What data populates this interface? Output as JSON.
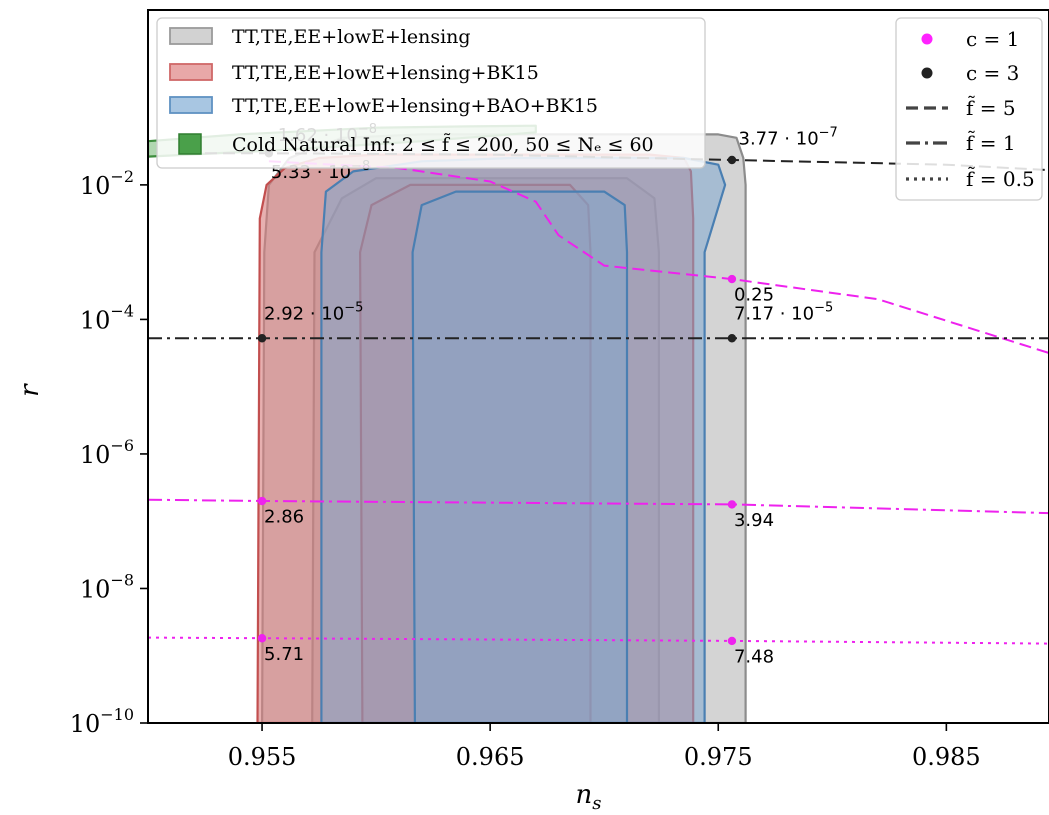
{
  "chart_data": {
    "type": "line",
    "xlabel": "n_s",
    "ylabel": "r",
    "x_axis_label": {
      "base": "n",
      "sub": "s"
    },
    "y_axis_label": "r",
    "xlim": [
      0.95,
      0.9895
    ],
    "ylim_log10": [
      -10,
      0.6
    ],
    "y_scale": "log",
    "x_ticks": [
      {
        "value": 0.955,
        "label": "0.955"
      },
      {
        "value": 0.965,
        "label": "0.965"
      },
      {
        "value": 0.975,
        "label": "0.975"
      },
      {
        "value": 0.985,
        "label": "0.985"
      }
    ],
    "y_ticks": [
      {
        "log": -2,
        "base": "10",
        "exp": "−2"
      },
      {
        "log": -4,
        "base": "10",
        "exp": "−4"
      },
      {
        "log": -6,
        "base": "10",
        "exp": "−6"
      },
      {
        "log": -8,
        "base": "10",
        "exp": "−8"
      },
      {
        "log": -10,
        "base": "10",
        "exp": "−10"
      }
    ],
    "regions": [
      {
        "name": "TT,TE,EE+lowE+lensing",
        "color": "#b0b0b0",
        "edge": "#8c8c8c",
        "opacity": 0.55,
        "outer_left": [
          [
            -10,
            0.955
          ],
          [
            -3,
            0.9551
          ],
          [
            -2,
            0.9553
          ],
          [
            -1.6,
            0.9562
          ],
          [
            -1.3,
            0.9585
          ],
          [
            -1.25,
            0.962
          ],
          [
            -1.25,
            0.975
          ],
          [
            -1.3,
            0.9758
          ],
          [
            -1.6,
            0.9761
          ],
          [
            -2,
            0.9762
          ],
          [
            -10,
            0.9762
          ]
        ],
        "inner_left": [
          [
            -10,
            0.9572
          ],
          [
            -3,
            0.9573
          ],
          [
            -2.2,
            0.9585
          ],
          [
            -1.9,
            0.96
          ],
          [
            -1.9,
            0.971
          ],
          [
            -2.2,
            0.9722
          ],
          [
            -3,
            0.9724
          ],
          [
            -10,
            0.9724
          ]
        ]
      },
      {
        "name": "TT,TE,EE+lowE+lensing+BK15",
        "color": "#d98080",
        "edge": "#c24f4f",
        "opacity": 0.62,
        "outer": [
          [
            -10,
            0.9548
          ],
          [
            -2.5,
            0.9549
          ],
          [
            -2,
            0.9552
          ],
          [
            -1.75,
            0.956
          ],
          [
            -1.6,
            0.9575
          ],
          [
            -1.55,
            0.96
          ],
          [
            -1.55,
            0.972
          ],
          [
            -1.6,
            0.9735
          ],
          [
            -1.8,
            0.9738
          ],
          [
            -2.5,
            0.9739
          ],
          [
            -10,
            0.9739
          ]
        ],
        "inner": [
          [
            -10,
            0.9594
          ],
          [
            -3,
            0.9593
          ],
          [
            -2.3,
            0.9598
          ],
          [
            -2,
            0.9615
          ],
          [
            -2,
            0.9685
          ],
          [
            -2.3,
            0.9693
          ],
          [
            -3,
            0.9694
          ],
          [
            -10,
            0.9694
          ]
        ]
      },
      {
        "name": "TT,TE,EE+lowE+lensing+BAO+BK15",
        "color": "#7fa7cf",
        "edge": "#4a7fb2",
        "opacity": 0.55,
        "outer": [
          [
            -10,
            0.9576
          ],
          [
            -3,
            0.9576
          ],
          [
            -2.1,
            0.9578
          ],
          [
            -1.8,
            0.959
          ],
          [
            -1.65,
            0.962
          ],
          [
            -1.6,
            0.966
          ],
          [
            -1.6,
            0.9735
          ],
          [
            -1.7,
            0.975
          ],
          [
            -2,
            0.9753
          ],
          [
            -3,
            0.9744
          ],
          [
            -10,
            0.9744
          ]
        ],
        "inner": [
          [
            -10,
            0.9617
          ],
          [
            -3,
            0.9616
          ],
          [
            -2.3,
            0.962
          ],
          [
            -2.1,
            0.9635
          ],
          [
            -2.1,
            0.97
          ],
          [
            -2.3,
            0.9709
          ],
          [
            -3,
            0.971
          ],
          [
            -10,
            0.971
          ]
        ]
      },
      {
        "name": "Cold Natural Inf: 2 ≤ f̃ ≤ 200, 50 ≤ N_e ≤ 60",
        "color": "#6fb76f",
        "edge": "#3c8d3c",
        "opacity": 0.55,
        "outline": [
          [
            0.95,
            -1.35
          ],
          [
            0.954,
            -1.25
          ],
          [
            0.96,
            -1.15
          ],
          [
            0.964,
            -1.13
          ],
          [
            0.967,
            -1.12
          ],
          [
            0.967,
            -1.22
          ],
          [
            0.962,
            -1.35
          ],
          [
            0.956,
            -1.48
          ],
          [
            0.95,
            -1.58
          ]
        ]
      }
    ],
    "series": [
      {
        "name": "c = 3, f̃ = 5",
        "color": "#222222",
        "style": "dashed",
        "x": [
          0.9525,
          0.9553,
          0.965,
          0.9756,
          0.985,
          0.9895
        ],
        "log_y": [
          -1.53,
          -1.53,
          -1.55,
          -1.63,
          -1.7,
          -1.78
        ]
      },
      {
        "name": "c = 1, f̃ = 5",
        "color": "#ee22ee",
        "style": "dashed",
        "x": [
          0.9553,
          0.961,
          0.965,
          0.967,
          0.968,
          0.97,
          0.9756,
          0.982,
          0.9895
        ],
        "log_y": [
          -1.65,
          -1.75,
          -1.95,
          -2.25,
          -2.75,
          -3.2,
          -3.4,
          -3.7,
          -4.5
        ]
      },
      {
        "name": "c = 3, f̃ = 1",
        "color": "#222222",
        "style": "dashdot",
        "x": [
          0.95,
          0.9895
        ],
        "log_y": [
          -4.28,
          -4.28
        ]
      },
      {
        "name": "c = 1, f̃ = 1",
        "color": "#ee22ee",
        "style": "dashdot",
        "x": [
          0.95,
          0.955,
          0.9756,
          0.9895
        ],
        "log_y": [
          -6.68,
          -6.7,
          -6.75,
          -6.88
        ]
      },
      {
        "name": "c = 1, f̃ = 0.5",
        "color": "#ee22ee",
        "style": "dotted",
        "x": [
          0.95,
          0.955,
          0.9756,
          0.9895
        ],
        "log_y": [
          -8.73,
          -8.74,
          -8.78,
          -8.82
        ]
      }
    ],
    "points": [
      {
        "x": 0.9553,
        "log_y": -1.53,
        "color": "#222222"
      },
      {
        "x": 0.9756,
        "log_y": -1.63,
        "color": "#222222"
      },
      {
        "x": 0.955,
        "log_y": -4.28,
        "color": "#222222"
      },
      {
        "x": 0.9756,
        "log_y": -4.28,
        "color": "#222222"
      },
      {
        "x": 0.9756,
        "log_y": -3.4,
        "color": "#ee22ee"
      },
      {
        "x": 0.955,
        "log_y": -6.7,
        "color": "#ee22ee"
      },
      {
        "x": 0.9756,
        "log_y": -6.75,
        "color": "#ee22ee"
      },
      {
        "x": 0.955,
        "log_y": -8.74,
        "color": "#ee22ee"
      },
      {
        "x": 0.9756,
        "log_y": -8.78,
        "color": "#ee22ee"
      }
    ],
    "annotations": [
      {
        "mant": "1.62",
        "exp": "−8",
        "x": 0.9556,
        "log_y": -1.35
      },
      {
        "mant": "5.33",
        "exp": "−8",
        "x": 0.9553,
        "log_y": -1.9
      },
      {
        "mant": "3.77",
        "exp": "−7",
        "x": 0.9758,
        "log_y": -1.4
      },
      {
        "text": "0.25",
        "x": 0.9756,
        "log_y": -3.72
      },
      {
        "mant": "2.92",
        "exp": "−5",
        "x": 0.955,
        "log_y": -4.0
      },
      {
        "mant": "7.17",
        "exp": "−5",
        "x": 0.9756,
        "log_y": -4.0
      },
      {
        "text": "2.86",
        "x": 0.955,
        "log_y": -7.02
      },
      {
        "text": "3.94",
        "x": 0.9756,
        "log_y": -7.07
      },
      {
        "text": "5.71",
        "x": 0.955,
        "log_y": -9.06
      },
      {
        "text": "7.48",
        "x": 0.9756,
        "log_y": -9.1
      }
    ],
    "legend_left": {
      "placement": "top-left",
      "entries": [
        {
          "label": "TT,TE,EE+lowE+lensing",
          "color": "#d2d2d2",
          "edge": "#9a9a9a"
        },
        {
          "label": "TT,TE,EE+lowE+lensing+BK15",
          "color": "#e8a8a8",
          "edge": "#d06868"
        },
        {
          "label": "TT,TE,EE+lowE+lensing+BAO+BK15",
          "color": "#a8c6e2",
          "edge": "#5f92c2"
        },
        {
          "label": "Cold Natural Inf: 2 ≤ f̃ ≤ 200, 50 ≤ Nₑ ≤ 60",
          "color": "#4aa04a",
          "edge": "#2f7d2f"
        }
      ]
    },
    "legend_right": {
      "placement": "top-right",
      "entries": [
        {
          "label": "c = 1",
          "marker": "dot",
          "color": "#ff22ff"
        },
        {
          "label": "c = 3",
          "marker": "dot",
          "color": "#222222"
        },
        {
          "label": "f̃ = 5",
          "marker": "dashed",
          "color": "#444444"
        },
        {
          "label": "f̃ = 1",
          "marker": "dashdot",
          "color": "#444444"
        },
        {
          "label": "f̃ = 0.5",
          "marker": "dotted",
          "color": "#444444"
        }
      ]
    }
  }
}
